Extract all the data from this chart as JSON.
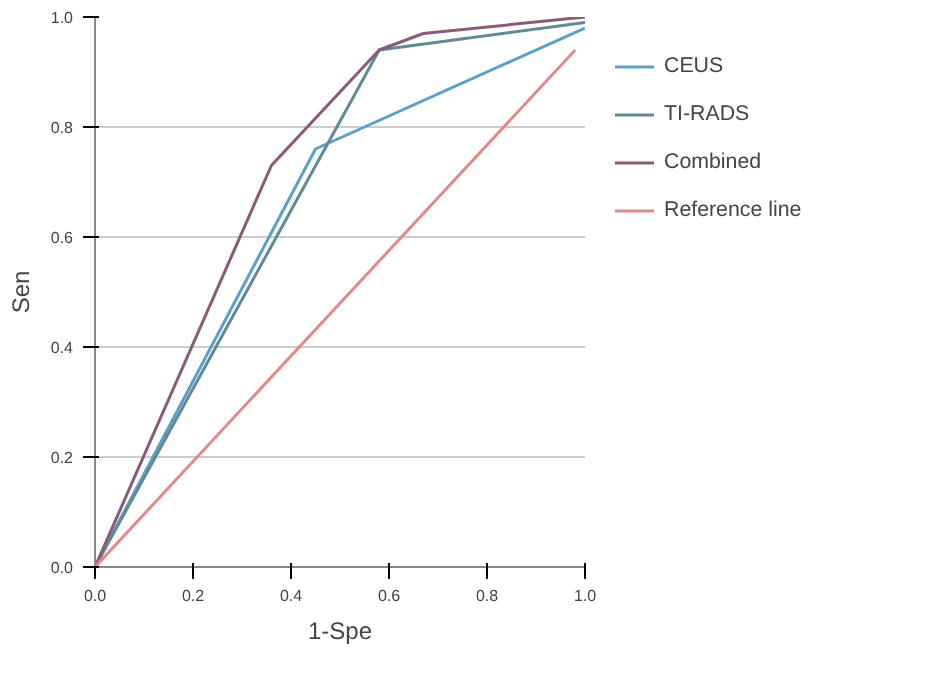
{
  "chart_data": {
    "type": "line",
    "xlabel": "1-Spe",
    "ylabel": "Sen",
    "xlim": [
      0,
      1
    ],
    "ylim": [
      0,
      1
    ],
    "xticks": [
      {
        "value": 0,
        "label": "0.0"
      },
      0.2,
      0.4,
      0.6,
      0.8,
      {
        "value": 1,
        "label": "1.0"
      }
    ],
    "yticks": [
      {
        "value": 0,
        "label": "0.0"
      },
      0.2,
      0.4,
      0.6,
      0.8,
      {
        "value": 1,
        "label": "1.0"
      }
    ],
    "grid": "y",
    "legend": "top right",
    "marker": "none",
    "series": [
      {
        "name": "CEUS",
        "color": "#5aa0c8",
        "x": [
          0,
          0.45,
          1.0
        ],
        "values": [
          0,
          0.76,
          0.98
        ]
      },
      {
        "name": "TI-RADS",
        "color": "#5f8a96",
        "x": [
          0,
          0.58,
          1.0
        ],
        "values": [
          0,
          0.94,
          0.99
        ]
      },
      {
        "name": "Combined",
        "color": "#8a5a78",
        "x": [
          0,
          0.36,
          0.58,
          0.67,
          1.0
        ],
        "values": [
          0,
          0.73,
          0.94,
          0.97,
          1.0
        ]
      },
      {
        "name": "Reference line",
        "color": "#e08a8a",
        "x": [
          0,
          0.98
        ],
        "values": [
          0,
          0.94
        ]
      }
    ]
  }
}
